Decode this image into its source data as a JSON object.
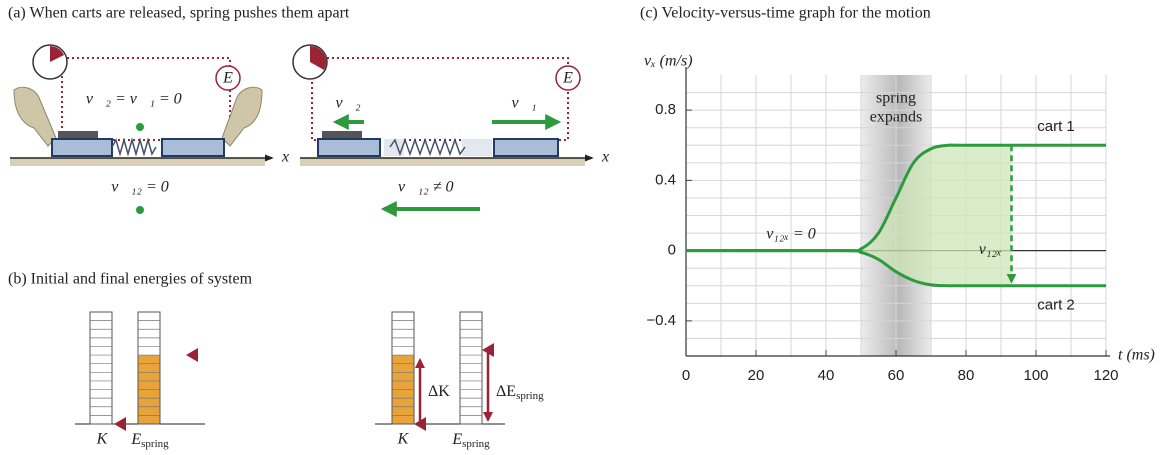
{
  "panel_a": {
    "title": "(a) When carts are released, spring pushes them apart",
    "left": {
      "velocities": "v⃗₂ = v⃗₁ = 0⃗",
      "relative": "v⃗₁₂ = 0",
      "energy": "E",
      "axis": "x"
    },
    "right": {
      "v2": "v⃗₂",
      "v1": "v⃗₁",
      "relative": "v⃗₁₂ ≠ 0⃗",
      "energy": "E",
      "axis": "x"
    }
  },
  "panel_b": {
    "title": "(b) Initial and final energies of system",
    "kinetic": "K",
    "spring": {
      "symbol": "E",
      "sub": "spring"
    },
    "delta_k": "ΔK",
    "delta_spring": {
      "symbol": "ΔE",
      "sub": "spring"
    }
  },
  "chart_data": {
    "type": "line",
    "title": "(c) Velocity-versus-time graph for the motion",
    "x_label": "t (ms)",
    "y_label": "vₓ (m/s)",
    "xlim": [
      0,
      120
    ],
    "xticks": [
      0,
      20,
      40,
      60,
      80,
      100,
      120
    ],
    "xgrid": [
      10,
      20,
      30,
      40,
      50,
      60,
      70,
      80,
      90,
      100,
      110,
      120
    ],
    "ylim": [
      -0.6,
      1.0
    ],
    "yticks": [
      0.8,
      0.4,
      0,
      {
        "value": -0.4,
        "label": "−0.4"
      }
    ],
    "ygrid": [
      -0.5,
      -0.4,
      -0.3,
      -0.2,
      -0.1,
      0.1,
      0.2,
      0.3,
      0.4,
      0.5,
      0.6,
      0.7,
      0.8,
      0.9
    ],
    "grid": true,
    "shade": {
      "x": [
        50,
        70
      ],
      "label": [
        "spring",
        "expands"
      ]
    },
    "series": [
      {
        "name": "cart 1",
        "color": "#2e9a3e",
        "x": [
          0,
          45,
          50,
          55,
          60,
          65,
          70,
          75,
          80,
          120
        ],
        "values": [
          0,
          0,
          0.01,
          0.1,
          0.3,
          0.5,
          0.58,
          0.6,
          0.6,
          0.6
        ]
      },
      {
        "name": "cart 2",
        "color": "#2e9a3e",
        "x": [
          0,
          45,
          50,
          55,
          60,
          65,
          70,
          75,
          80,
          120
        ],
        "values": [
          0,
          0,
          -0.01,
          -0.05,
          -0.12,
          -0.17,
          -0.195,
          -0.2,
          -0.2,
          -0.2
        ]
      }
    ],
    "annotations": {
      "zero": "v₁₂ₓ = 0",
      "difference": "v₁₂ₓ",
      "difference_x": 93
    }
  }
}
